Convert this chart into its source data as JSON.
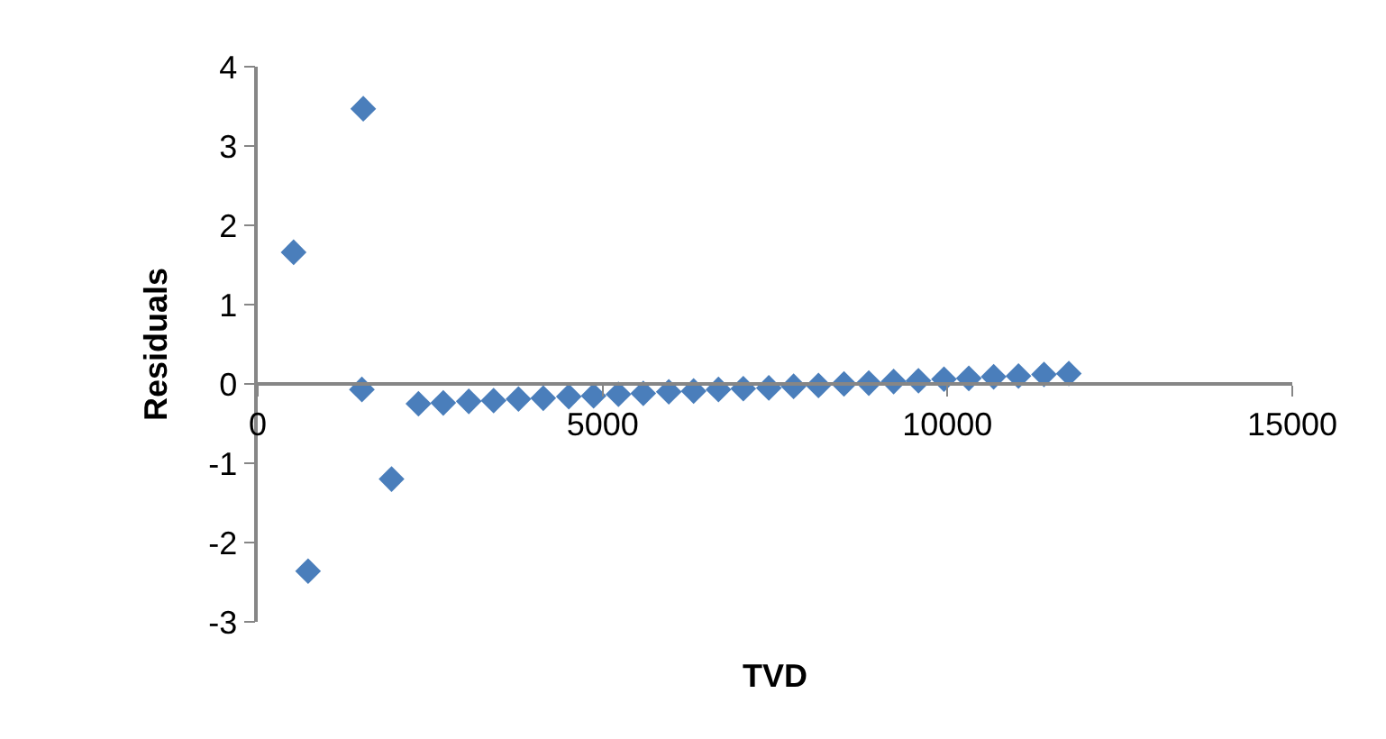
{
  "chart_data": {
    "type": "scatter",
    "xlabel": "TVD",
    "ylabel": "Residuals",
    "x": [
      520,
      730,
      1530,
      1510,
      1940,
      2330,
      2690,
      3060,
      3420,
      3780,
      4140,
      4510,
      4870,
      5230,
      5590,
      5960,
      6320,
      6680,
      7040,
      7410,
      7770,
      8130,
      8500,
      8860,
      9220,
      9580,
      9950,
      10310,
      10670,
      11030,
      11400,
      11760
    ],
    "series": [
      {
        "color": "#4a7ebb",
        "values": [
          1.66,
          -2.36,
          3.47,
          -0.07,
          -1.2,
          -0.25,
          -0.24,
          -0.22,
          -0.21,
          -0.19,
          -0.18,
          -0.16,
          -0.15,
          -0.13,
          -0.12,
          -0.1,
          -0.09,
          -0.07,
          -0.06,
          -0.05,
          -0.03,
          -0.02,
          0.0,
          0.01,
          0.03,
          0.04,
          0.06,
          0.07,
          0.09,
          0.1,
          0.12,
          0.13
        ]
      }
    ],
    "xlim": [
      0,
      15000
    ],
    "xticks": [
      0,
      5000,
      10000,
      15000
    ],
    "ylim": [
      -3,
      4
    ],
    "yticks": [
      -3,
      -2,
      -1,
      0,
      1,
      2,
      3,
      4
    ],
    "marker": "diamond"
  }
}
